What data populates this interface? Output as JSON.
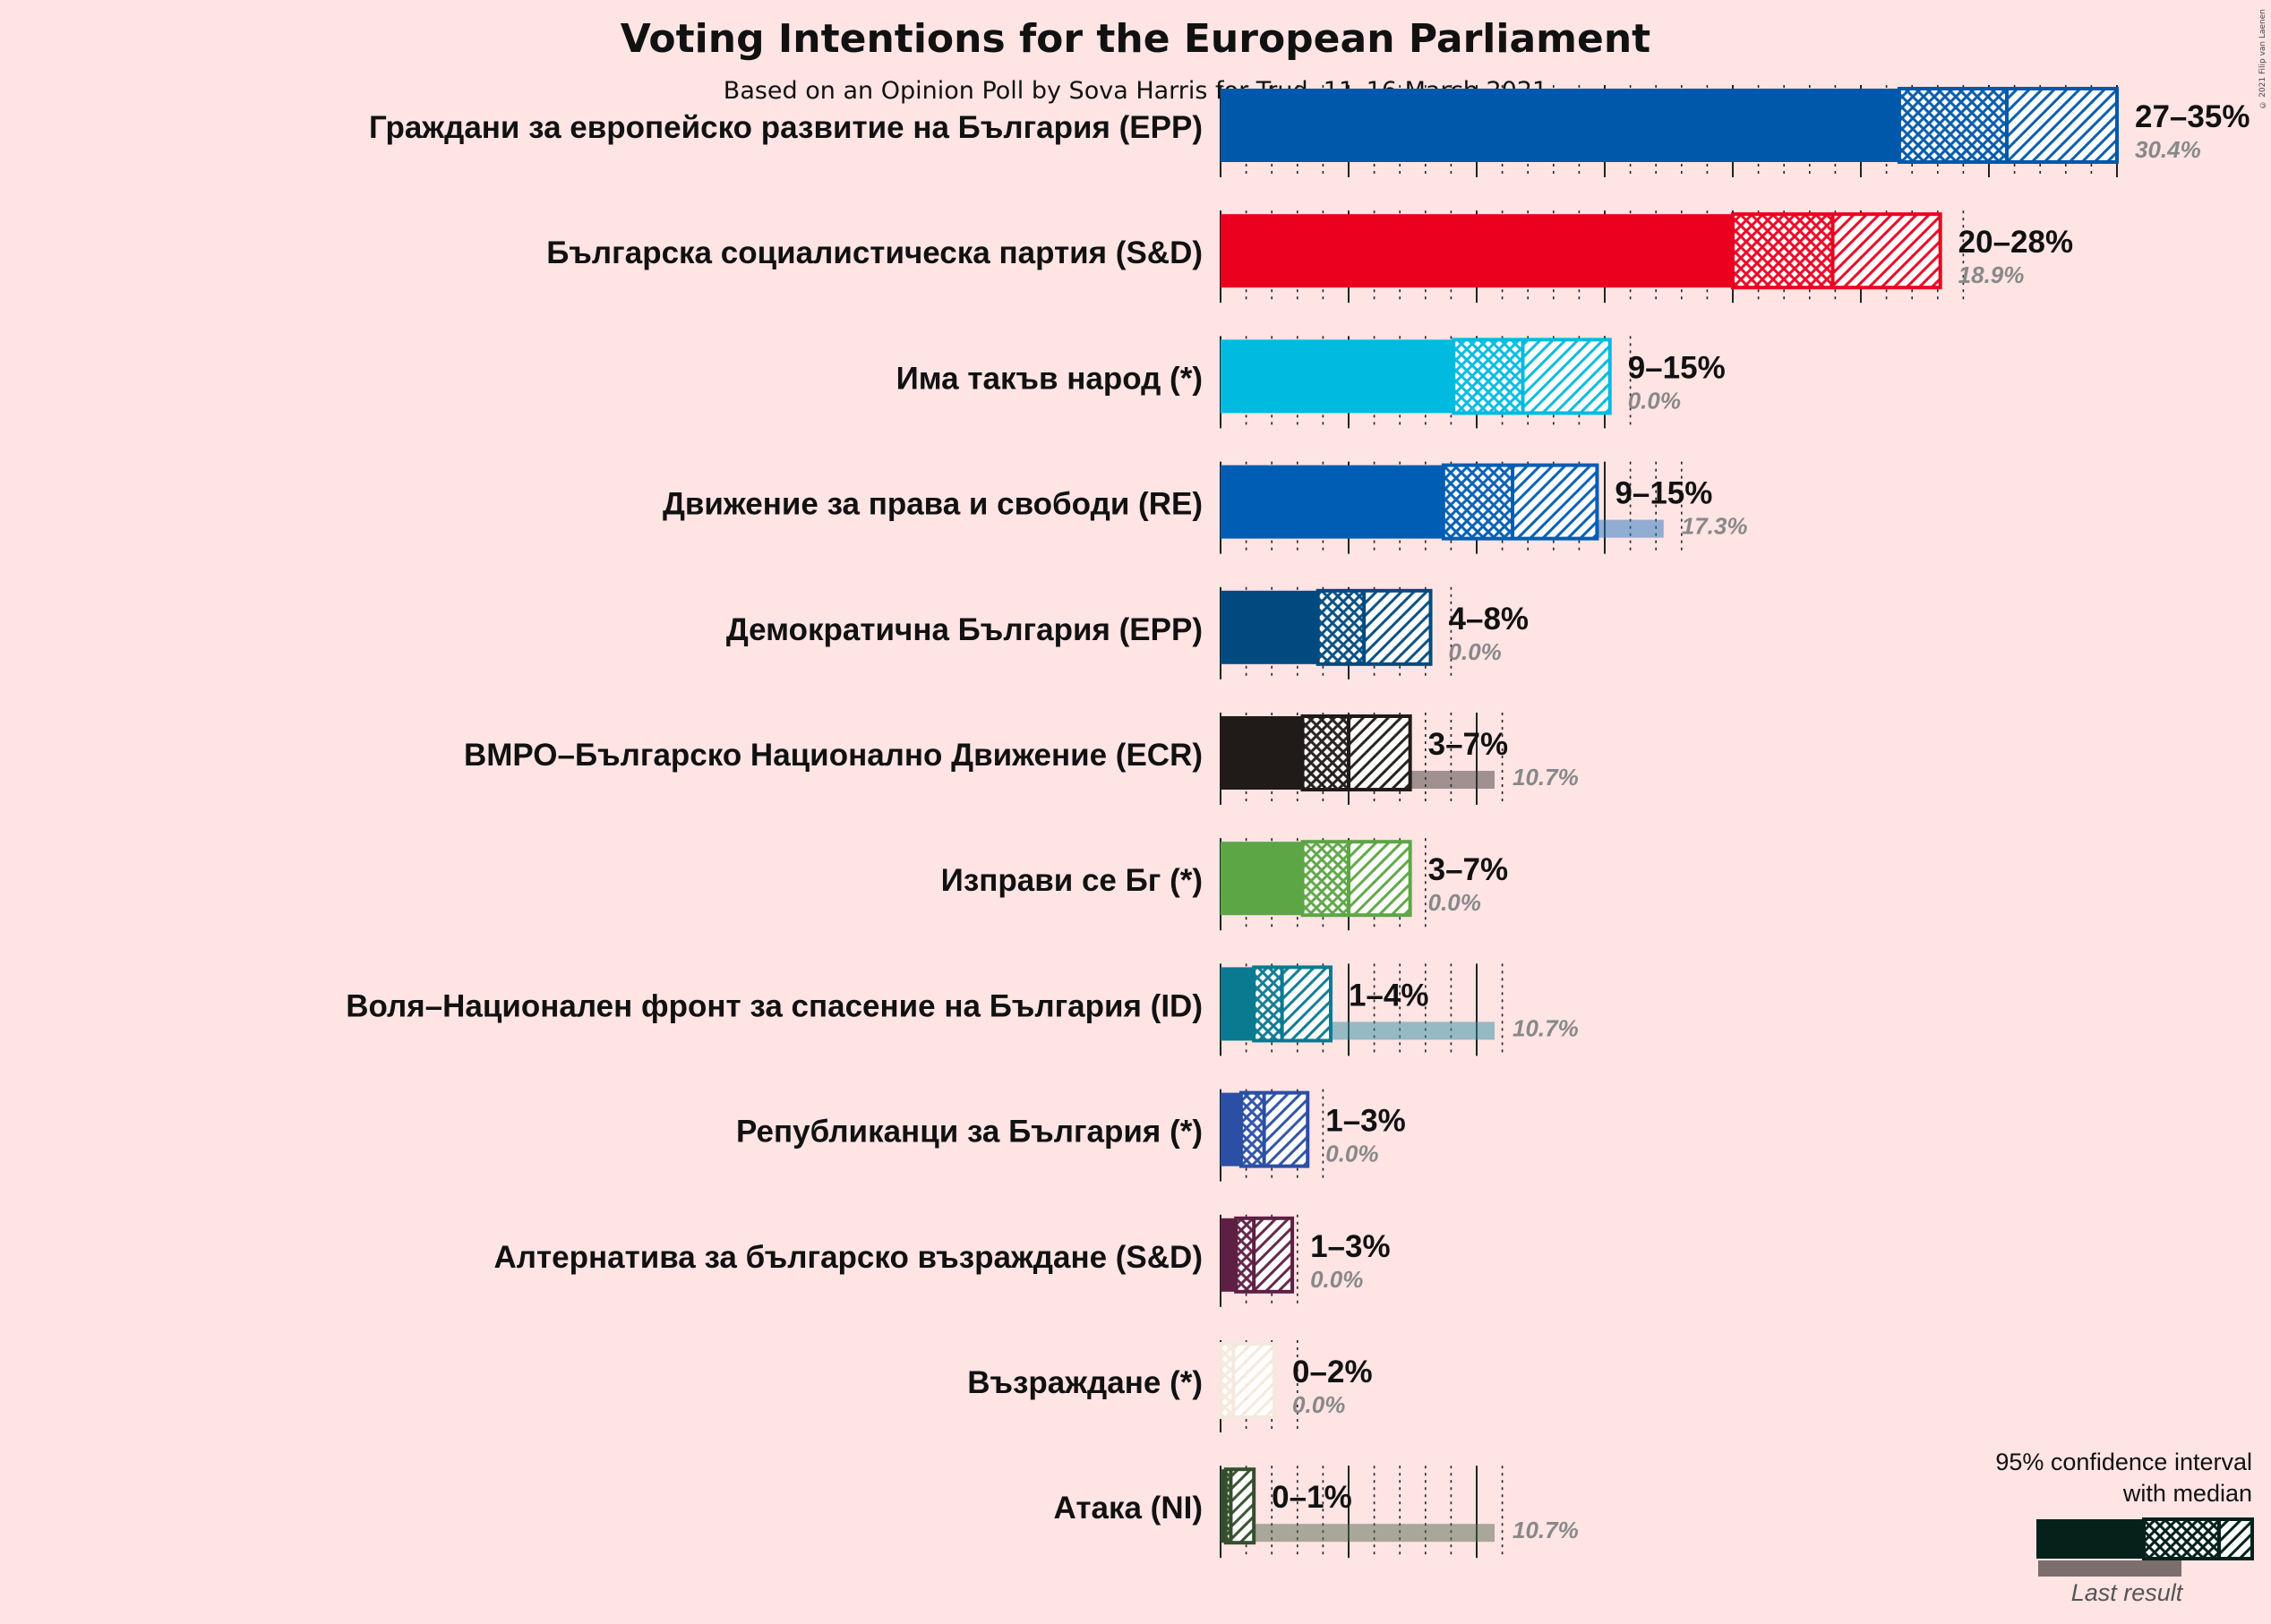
{
  "title": "Voting Intentions for the European Parliament",
  "subtitle": "Based on an Opinion Poll by Sova Harris for Trud, 11–16 March 2021",
  "copyright": "© 2021 Filip van Laenen",
  "legend": {
    "title_line1": "95% confidence interval",
    "title_line2": "with median",
    "last_result_label": "Last result"
  },
  "chart_data": {
    "type": "bar",
    "orientation": "horizontal",
    "xlim": [
      0,
      35
    ],
    "grid": "vertical gridlines every 1%, major every 5%",
    "series_description": [
      "95% confidence interval low",
      "median",
      "95% confidence interval high",
      "last result"
    ],
    "parties": [
      {
        "name": "Граждани за европейско развитие на България (EPP)",
        "range_label": "27–35%",
        "last_label": "30.4%",
        "low": 26.5,
        "median": 30.7,
        "high": 35.0,
        "last": 30.4,
        "color": "#0058AA"
      },
      {
        "name": "Българска социалистическа партия (S&D)",
        "range_label": "20–28%",
        "last_label": "18.9%",
        "low": 20.0,
        "median": 23.9,
        "high": 28.1,
        "last": 18.9,
        "color": "#EB0020"
      },
      {
        "name": "Има такъв народ (*)",
        "range_label": "9–15%",
        "last_label": "0.0%",
        "low": 9.1,
        "median": 11.8,
        "high": 15.2,
        "last": 0.0,
        "color": "#00BBDF"
      },
      {
        "name": "Движение за права и свободи (RE)",
        "range_label": "9–15%",
        "last_label": "17.3%",
        "low": 8.7,
        "median": 11.4,
        "high": 14.7,
        "last": 17.3,
        "color": "#005DB4"
      },
      {
        "name": "Демократична България (EPP)",
        "range_label": "4–8%",
        "last_label": "0.0%",
        "low": 3.8,
        "median": 5.6,
        "high": 8.2,
        "last": 0.0,
        "color": "#004A80"
      },
      {
        "name": "ВМРО–Българско Национално Движение (ECR)",
        "range_label": "3–7%",
        "last_label": "10.7%",
        "low": 3.2,
        "median": 5.0,
        "high": 7.4,
        "last": 10.7,
        "color": "#201A18"
      },
      {
        "name": "Изправи се Бг (*)",
        "range_label": "3–7%",
        "last_label": "0.0%",
        "low": 3.2,
        "median": 5.0,
        "high": 7.4,
        "last": 0.0,
        "color": "#5CA645"
      },
      {
        "name": "Воля–Национален фронт за спасение на България (ID)",
        "range_label": "1–4%",
        "last_label": "10.7%",
        "low": 1.3,
        "median": 2.4,
        "high": 4.3,
        "last": 10.7,
        "color": "#0A7A91"
      },
      {
        "name": "Републиканци за България (*)",
        "range_label": "1–3%",
        "last_label": "0.0%",
        "low": 0.8,
        "median": 1.7,
        "high": 3.4,
        "last": 0.0,
        "color": "#2A4FA5"
      },
      {
        "name": "Алтернатива за българско възраждане (S&D)",
        "range_label": "1–3%",
        "last_label": "0.0%",
        "low": 0.6,
        "median": 1.3,
        "high": 2.8,
        "last": 0.0,
        "color": "#5E1F45"
      },
      {
        "name": "Възраждане (*)",
        "range_label": "0–2%",
        "last_label": "0.0%",
        "low": 0.0,
        "median": 0.5,
        "high": 2.1,
        "last": 0.0,
        "color": "#F5E9DF"
      },
      {
        "name": "Атака (NI)",
        "range_label": "0–1%",
        "last_label": "10.7%",
        "low": 0.2,
        "median": 0.4,
        "high": 1.3,
        "last": 10.7,
        "color": "#344E2E"
      }
    ]
  }
}
